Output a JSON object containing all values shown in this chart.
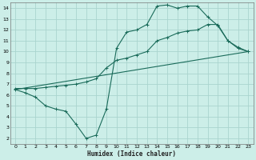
{
  "xlabel": "Humidex (Indice chaleur)",
  "xlim": [
    -0.5,
    23.5
  ],
  "ylim": [
    1.5,
    14.5
  ],
  "yticks": [
    2,
    3,
    4,
    5,
    6,
    7,
    8,
    9,
    10,
    11,
    12,
    13,
    14
  ],
  "xticks": [
    0,
    1,
    2,
    3,
    4,
    5,
    6,
    7,
    8,
    9,
    10,
    11,
    12,
    13,
    14,
    15,
    16,
    17,
    18,
    19,
    20,
    21,
    22,
    23
  ],
  "bg_color": "#cceee8",
  "grid_color": "#aad4ce",
  "line_color": "#1a6b5a",
  "line1_x": [
    0,
    1,
    2,
    3,
    4,
    5,
    6,
    7,
    8,
    9,
    10,
    11,
    12,
    13,
    14,
    15,
    16,
    17,
    18,
    19,
    20,
    21,
    22,
    23
  ],
  "line1_y": [
    6.5,
    6.2,
    5.8,
    5.0,
    4.7,
    4.5,
    3.3,
    2.0,
    2.3,
    4.7,
    10.3,
    11.8,
    12.0,
    12.5,
    14.2,
    14.3,
    14.0,
    14.2,
    14.2,
    13.2,
    12.4,
    11.0,
    10.3,
    10.0
  ],
  "line2_x": [
    0,
    1,
    2,
    3,
    4,
    5,
    6,
    7,
    8,
    9,
    10,
    11,
    12,
    13,
    14,
    15,
    16,
    17,
    18,
    19,
    20,
    21,
    22,
    23
  ],
  "line2_y": [
    6.6,
    6.6,
    6.6,
    6.7,
    6.8,
    6.9,
    7.0,
    7.2,
    7.5,
    8.5,
    9.2,
    9.4,
    9.7,
    10.0,
    11.0,
    11.3,
    11.7,
    11.9,
    12.0,
    12.5,
    12.5,
    11.0,
    10.4,
    10.0
  ],
  "line3_x": [
    0,
    23
  ],
  "line3_y": [
    6.5,
    10.0
  ]
}
